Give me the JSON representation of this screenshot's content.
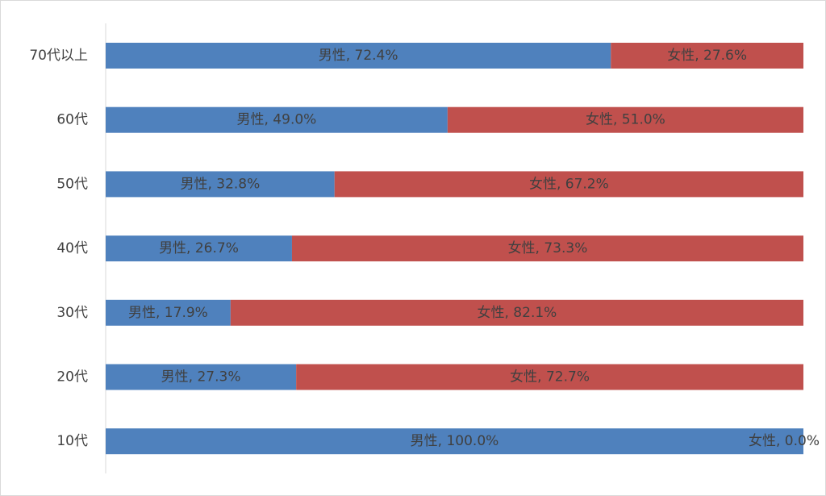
{
  "chart_data": {
    "type": "bar",
    "orientation": "horizontal",
    "stacked": true,
    "percent": true,
    "title": "",
    "xlabel": "",
    "ylabel": "",
    "xlim": [
      0,
      100
    ],
    "grid": false,
    "legend": "none",
    "categories": [
      "70代以上",
      "60代",
      "50代",
      "40代",
      "30代",
      "20代",
      "10代"
    ],
    "series": [
      {
        "name": "男性",
        "color": "#4f81bd",
        "values": [
          72.4,
          49.0,
          32.8,
          26.7,
          17.9,
          27.3,
          100.0
        ]
      },
      {
        "name": "女性",
        "color": "#c0504d",
        "values": [
          27.6,
          51.0,
          67.2,
          73.3,
          82.1,
          72.7,
          0.0
        ]
      }
    ],
    "data_labels": [
      [
        "男性, 72.4%",
        "男性, 49.0%",
        "男性, 32.8%",
        "男性, 26.7%",
        "男性, 17.9%",
        "男性, 27.3%",
        "男性, 100.0%"
      ],
      [
        "女性, 27.6%",
        "女性, 51.0%",
        "女性, 67.2%",
        "女性, 73.3%",
        "女性, 82.1%",
        "女性, 72.7%",
        "女性, 0.0%"
      ]
    ]
  }
}
